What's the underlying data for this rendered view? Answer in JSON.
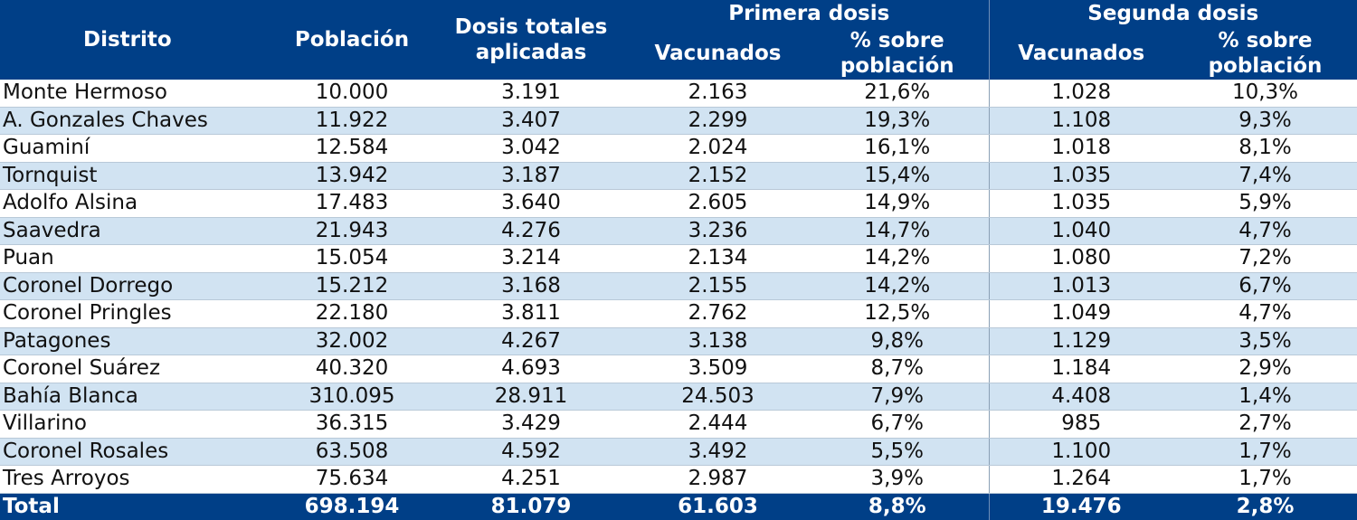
{
  "chart_data": {
    "type": "table",
    "headers": {
      "distrito": "Distrito",
      "poblacion": "Población",
      "dosis_totales": "Dosis totales aplicadas",
      "primera_dosis": "Primera dosis",
      "segunda_dosis": "Segunda dosis",
      "vacunados_1": "Vacunados",
      "porc_1": "% sobre población",
      "vacunados_2": "Vacunados",
      "porc_2": "% sobre población"
    },
    "rows": [
      [
        "Monte Hermoso",
        "10.000",
        "3.191",
        "2.163",
        "21,6%",
        "1.028",
        "10,3%"
      ],
      [
        "A. Gonzales Chaves",
        "11.922",
        "3.407",
        "2.299",
        "19,3%",
        "1.108",
        "9,3%"
      ],
      [
        "Guaminí",
        "12.584",
        "3.042",
        "2.024",
        "16,1%",
        "1.018",
        "8,1%"
      ],
      [
        "Tornquist",
        "13.942",
        "3.187",
        "2.152",
        "15,4%",
        "1.035",
        "7,4%"
      ],
      [
        "Adolfo Alsina",
        "17.483",
        "3.640",
        "2.605",
        "14,9%",
        "1.035",
        "5,9%"
      ],
      [
        "Saavedra",
        "21.943",
        "4.276",
        "3.236",
        "14,7%",
        "1.040",
        "4,7%"
      ],
      [
        "Puan",
        "15.054",
        "3.214",
        "2.134",
        "14,2%",
        "1.080",
        "7,2%"
      ],
      [
        "Coronel Dorrego",
        "15.212",
        "3.168",
        "2.155",
        "14,2%",
        "1.013",
        "6,7%"
      ],
      [
        "Coronel Pringles",
        "22.180",
        "3.811",
        "2.762",
        "12,5%",
        "1.049",
        "4,7%"
      ],
      [
        "Patagones",
        "32.002",
        "4.267",
        "3.138",
        "9,8%",
        "1.129",
        "3,5%"
      ],
      [
        "Coronel Suárez",
        "40.320",
        "4.693",
        "3.509",
        "8,7%",
        "1.184",
        "2,9%"
      ],
      [
        "Bahía Blanca",
        "310.095",
        "28.911",
        "24.503",
        "7,9%",
        "4.408",
        "1,4%"
      ],
      [
        "Villarino",
        "36.315",
        "3.429",
        "2.444",
        "6,7%",
        "985",
        "2,7%"
      ],
      [
        "Coronel Rosales",
        "63.508",
        "4.592",
        "3.492",
        "5,5%",
        "1.100",
        "1,7%"
      ],
      [
        "Tres Arroyos",
        "75.634",
        "4.251",
        "2.987",
        "3,9%",
        "1.264",
        "1,7%"
      ]
    ],
    "total": [
      "Total",
      "698.194",
      "81.079",
      "61.603",
      "8,8%",
      "19.476",
      "2,8%"
    ]
  },
  "colors": {
    "header_bg": "#003f87",
    "header_text": "#ffffff",
    "row_alt_bg": "#d1e3f2",
    "row_bg": "#ffffff"
  }
}
